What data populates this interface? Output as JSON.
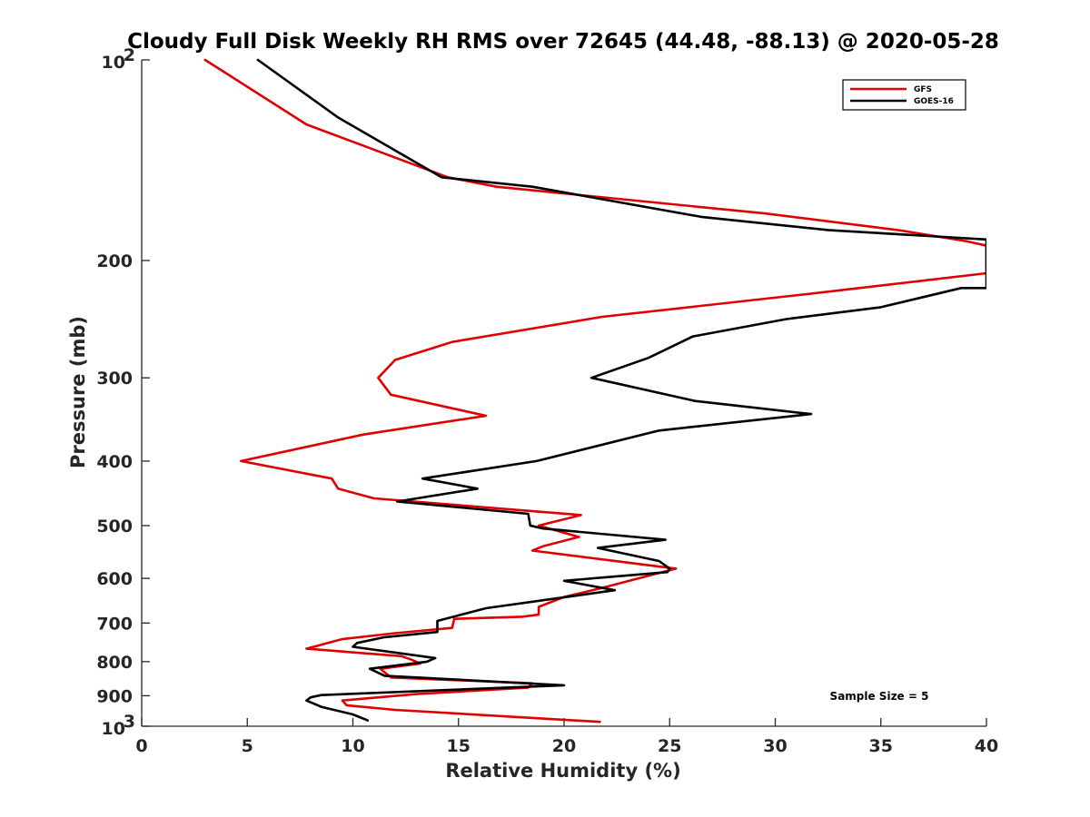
{
  "chart_data": {
    "type": "line",
    "title": "Cloudy Full Disk Weekly RH RMS over 72645 (44.48, -88.13) @ 2020-05-28",
    "xlabel": "Relative Humidity (%)",
    "ylabel": "Pressure (mb)",
    "xlim": [
      0,
      40
    ],
    "ylim": [
      100,
      1000
    ],
    "y_scale": "log",
    "y_reversed": true,
    "grid": false,
    "legend_position": "top-right",
    "x_ticks": [
      "0",
      "5",
      "10",
      "15",
      "20",
      "25",
      "30",
      "35",
      "40"
    ],
    "y_ticks": [
      {
        "value": 100,
        "label": "10",
        "sup": "2"
      },
      {
        "value": 200,
        "label": "200",
        "sup": ""
      },
      {
        "value": 300,
        "label": "300",
        "sup": ""
      },
      {
        "value": 400,
        "label": "400",
        "sup": ""
      },
      {
        "value": 500,
        "label": "500",
        "sup": ""
      },
      {
        "value": 600,
        "label": "600",
        "sup": ""
      },
      {
        "value": 700,
        "label": "700",
        "sup": ""
      },
      {
        "value": 800,
        "label": "800",
        "sup": ""
      },
      {
        "value": 900,
        "label": "900",
        "sup": ""
      },
      {
        "value": 1000,
        "label": "10",
        "sup": "3"
      }
    ],
    "series": [
      {
        "name": "GFS",
        "color": "#e00000",
        "points": [
          [
            3.0,
            100
          ],
          [
            7.8,
            125
          ],
          [
            14.5,
            150
          ],
          [
            16.8,
            155
          ],
          [
            29.5,
            170
          ],
          [
            35.8,
            180
          ],
          [
            39.0,
            187
          ],
          [
            40.0,
            190
          ],
          [
            40.0,
            209
          ],
          [
            31.3,
            225
          ],
          [
            21.8,
            243
          ],
          [
            14.7,
            265
          ],
          [
            12.0,
            282
          ],
          [
            11.2,
            300
          ],
          [
            11.8,
            318
          ],
          [
            16.3,
            342
          ],
          [
            10.5,
            365
          ],
          [
            4.7,
            400
          ],
          [
            9.0,
            425
          ],
          [
            9.3,
            440
          ],
          [
            11.0,
            455
          ],
          [
            20.8,
            482
          ],
          [
            18.8,
            500
          ],
          [
            20.7,
            520
          ],
          [
            19.0,
            537
          ],
          [
            18.5,
            545
          ],
          [
            25.3,
            580
          ],
          [
            23.5,
            600
          ],
          [
            21.8,
            620
          ],
          [
            20.0,
            640
          ],
          [
            18.8,
            662
          ],
          [
            18.8,
            680
          ],
          [
            18.0,
            685
          ],
          [
            14.8,
            690
          ],
          [
            14.7,
            712
          ],
          [
            12.0,
            725
          ],
          [
            9.5,
            740
          ],
          [
            7.8,
            765
          ],
          [
            12.3,
            785
          ],
          [
            12.8,
            795
          ],
          [
            13.2,
            805
          ],
          [
            11.3,
            820
          ],
          [
            11.8,
            845
          ],
          [
            18.5,
            862
          ],
          [
            18.3,
            875
          ],
          [
            13.0,
            895
          ],
          [
            9.5,
            915
          ],
          [
            9.7,
            930
          ],
          [
            12.0,
            945
          ],
          [
            21.7,
            985
          ]
        ]
      },
      {
        "name": "GOES-16",
        "color": "#000000",
        "points": [
          [
            5.5,
            100
          ],
          [
            9.3,
            122
          ],
          [
            14.2,
            150
          ],
          [
            18.5,
            155
          ],
          [
            26.5,
            172
          ],
          [
            32.5,
            180
          ],
          [
            40.0,
            186
          ],
          [
            40.0,
            220
          ],
          [
            38.8,
            220
          ],
          [
            35.0,
            235
          ],
          [
            30.5,
            245
          ],
          [
            26.1,
            260
          ],
          [
            24.0,
            280
          ],
          [
            21.3,
            300
          ],
          [
            26.2,
            325
          ],
          [
            31.7,
            340
          ],
          [
            24.5,
            360
          ],
          [
            18.7,
            400
          ],
          [
            13.3,
            425
          ],
          [
            15.9,
            440
          ],
          [
            12.1,
            460
          ],
          [
            18.3,
            480
          ],
          [
            18.4,
            500
          ],
          [
            19.0,
            505
          ],
          [
            24.8,
            525
          ],
          [
            21.6,
            540
          ],
          [
            24.5,
            565
          ],
          [
            25.0,
            580
          ],
          [
            24.9,
            587
          ],
          [
            20.0,
            605
          ],
          [
            22.4,
            625
          ],
          [
            20.4,
            638
          ],
          [
            16.3,
            665
          ],
          [
            14.0,
            695
          ],
          [
            14.0,
            722
          ],
          [
            11.5,
            735
          ],
          [
            10.2,
            750
          ],
          [
            10.0,
            760
          ],
          [
            13.9,
            790
          ],
          [
            13.5,
            800
          ],
          [
            10.8,
            820
          ],
          [
            11.5,
            840
          ],
          [
            20.0,
            868
          ],
          [
            8.5,
            898
          ],
          [
            8.0,
            905
          ],
          [
            7.8,
            915
          ],
          [
            8.5,
            935
          ],
          [
            10.0,
            960
          ],
          [
            10.7,
            980
          ]
        ]
      }
    ],
    "annotation": "Sample Size = 5"
  }
}
